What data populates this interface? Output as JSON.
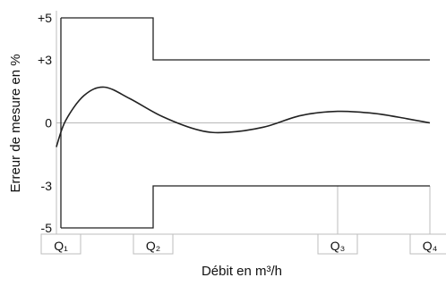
{
  "chart_data": {
    "type": "line",
    "title": "",
    "xlabel": "Débit en m³/h",
    "ylabel": "Erreur de mesure en %",
    "x_ticks": [
      "Q₁",
      "Q₂",
      "Q₃",
      "Q₄"
    ],
    "y_ticks": [
      "+5",
      "+3",
      "0",
      "-3",
      "-5"
    ],
    "y_tick_values": [
      5,
      3,
      0,
      -3,
      -5
    ],
    "ylim": [
      -5,
      5
    ],
    "x_domain": [
      0,
      4
    ],
    "x_positions": {
      "Q1": 0,
      "Q2": 1,
      "Q3": 3,
      "Q4": 4
    },
    "tolerance_envelope": {
      "upper": [
        {
          "x": 0,
          "y": 5
        },
        {
          "x": 1,
          "y": 5
        },
        {
          "x": 1,
          "y": 3
        },
        {
          "x": 4,
          "y": 3
        }
      ],
      "lower": [
        {
          "x": 0,
          "y": -5
        },
        {
          "x": 1,
          "y": -5
        },
        {
          "x": 1,
          "y": -3
        },
        {
          "x": 4,
          "y": -3
        }
      ]
    },
    "series": [
      {
        "points": [
          {
            "x": -0.05,
            "y": -1.15
          },
          {
            "x": 0.05,
            "y": 0.1
          },
          {
            "x": 0.25,
            "y": 1.3
          },
          {
            "x": 0.47,
            "y": 1.7
          },
          {
            "x": 0.75,
            "y": 1.15
          },
          {
            "x": 1.1,
            "y": 0.3
          },
          {
            "x": 1.5,
            "y": -0.35
          },
          {
            "x": 1.8,
            "y": -0.45
          },
          {
            "x": 2.2,
            "y": -0.2
          },
          {
            "x": 2.6,
            "y": 0.35
          },
          {
            "x": 3.0,
            "y": 0.55
          },
          {
            "x": 3.4,
            "y": 0.45
          },
          {
            "x": 3.75,
            "y": 0.2
          },
          {
            "x": 4.0,
            "y": 0.0
          }
        ]
      }
    ],
    "grid": false,
    "colors": {
      "ink": "#222222",
      "frame": "#bdbdbd",
      "zero_line": "#b8b8b8"
    }
  }
}
